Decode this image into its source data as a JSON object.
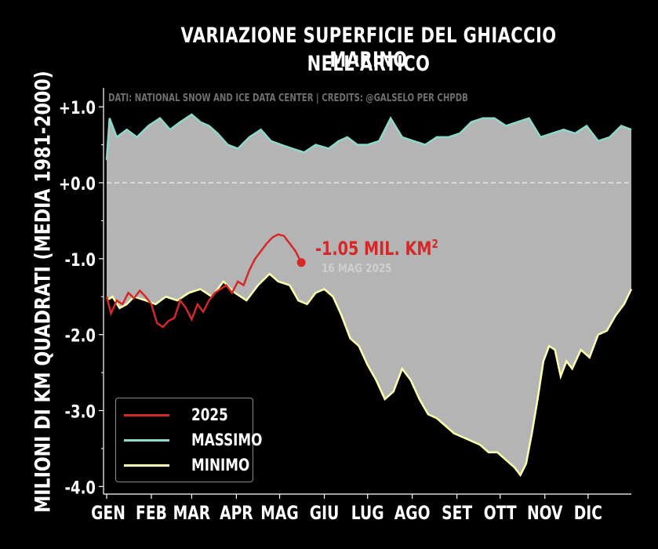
{
  "title_line1": "VARIAZIONE SUPERFICIE DEL GHIACCIO MARINO",
  "title_line2": "NELL'ARTICO",
  "credit": "DATI: NATIONAL SNOW AND ICE DATA CENTER | CREDITS: @GALSELO PER CHPDB",
  "annotation": {
    "value": "-1.05 MIL. KM",
    "superscript": "2",
    "date": "16 MAG 2025"
  },
  "colors": {
    "series_2025": "#d62728",
    "massimo": "#8fd8cc",
    "minimo": "#ffffb0",
    "band": "#b4b4b4",
    "zero_line": "#e6e6e6"
  },
  "chart_data": {
    "type": "line",
    "ylabel": "MILIONI DI KM QUADRATI (MEDIA 1981-2000)",
    "xlabel": "",
    "x_ticks": [
      "GEN",
      "FEB",
      "MAR",
      "APR",
      "MAG",
      "GIU",
      "LUG",
      "AGO",
      "SET",
      "OTT",
      "NOV",
      "DIC"
    ],
    "y_ticks": [
      {
        "value": 1.0,
        "label": "+1.0"
      },
      {
        "value": 0.0,
        "label": "+0.0"
      },
      {
        "value": -1.0,
        "label": "-1.0"
      },
      {
        "value": -2.0,
        "label": "-2.0"
      },
      {
        "value": -3.0,
        "label": "-3.0"
      },
      {
        "value": -4.0,
        "label": "-4.0"
      }
    ],
    "xlim": [
      1,
      365
    ],
    "ylim": [
      -4.1,
      1.25
    ],
    "legend_position": "bottom-left",
    "series": [
      {
        "name": "2025",
        "x": [
          1,
          4,
          8,
          12,
          16,
          20,
          24,
          28,
          32,
          36,
          40,
          44,
          48,
          52,
          56,
          60,
          64,
          68,
          72,
          76,
          80,
          84,
          88,
          92,
          96,
          100,
          104,
          108,
          112,
          116,
          120,
          124,
          128,
          132,
          136
        ],
        "y": [
          -1.5,
          -1.72,
          -1.55,
          -1.6,
          -1.45,
          -1.52,
          -1.42,
          -1.5,
          -1.6,
          -1.85,
          -1.9,
          -1.82,
          -1.78,
          -1.55,
          -1.65,
          -1.8,
          -1.6,
          -1.7,
          -1.55,
          -1.45,
          -1.4,
          -1.35,
          -1.45,
          -1.3,
          -1.35,
          -1.15,
          -1.0,
          -0.9,
          -0.8,
          -0.72,
          -0.68,
          -0.7,
          -0.8,
          -0.9,
          -1.05
        ]
      },
      {
        "name": "MASSIMO",
        "x": [
          1,
          3,
          8,
          15,
          22,
          30,
          38,
          45,
          52,
          60,
          66,
          72,
          78,
          85,
          92,
          100,
          108,
          115,
          122,
          130,
          138,
          146,
          155,
          162,
          168,
          175,
          182,
          190,
          198,
          206,
          214,
          222,
          230,
          238,
          246,
          254,
          262,
          270,
          278,
          286,
          294,
          302,
          310,
          318,
          326,
          334,
          342,
          350,
          358,
          365
        ],
        "y": [
          0.3,
          0.85,
          0.6,
          0.7,
          0.6,
          0.75,
          0.85,
          0.7,
          0.8,
          0.9,
          0.8,
          0.75,
          0.65,
          0.5,
          0.45,
          0.6,
          0.7,
          0.55,
          0.5,
          0.45,
          0.4,
          0.5,
          0.45,
          0.55,
          0.6,
          0.5,
          0.5,
          0.55,
          0.85,
          0.6,
          0.55,
          0.5,
          0.6,
          0.6,
          0.65,
          0.8,
          0.85,
          0.85,
          0.75,
          0.8,
          0.85,
          0.6,
          0.65,
          0.7,
          0.65,
          0.75,
          0.55,
          0.6,
          0.75,
          0.7
        ]
      },
      {
        "name": "MINIMO",
        "x": [
          1,
          5,
          10,
          15,
          20,
          28,
          35,
          42,
          50,
          58,
          66,
          74,
          82,
          90,
          98,
          106,
          114,
          120,
          128,
          134,
          140,
          146,
          152,
          158,
          164,
          170,
          176,
          182,
          188,
          194,
          200,
          206,
          212,
          218,
          224,
          230,
          236,
          242,
          248,
          254,
          260,
          266,
          272,
          278,
          284,
          288,
          292,
          296,
          300,
          304,
          308,
          312,
          316,
          320,
          324,
          330,
          336,
          342,
          348,
          354,
          360,
          365
        ],
        "y": [
          -1.55,
          -1.5,
          -1.65,
          -1.6,
          -1.5,
          -1.55,
          -1.6,
          -1.5,
          -1.55,
          -1.45,
          -1.4,
          -1.5,
          -1.3,
          -1.45,
          -1.55,
          -1.35,
          -1.2,
          -1.3,
          -1.35,
          -1.55,
          -1.6,
          -1.45,
          -1.4,
          -1.5,
          -1.75,
          -2.05,
          -2.15,
          -2.4,
          -2.6,
          -2.85,
          -2.75,
          -2.45,
          -2.6,
          -2.85,
          -3.05,
          -3.1,
          -3.2,
          -3.3,
          -3.35,
          -3.4,
          -3.45,
          -3.55,
          -3.55,
          -3.65,
          -3.75,
          -3.85,
          -3.7,
          -3.3,
          -2.85,
          -2.35,
          -2.15,
          -2.2,
          -2.55,
          -2.35,
          -2.45,
          -2.2,
          -2.3,
          -2.0,
          -1.95,
          -1.75,
          -1.6,
          -1.4
        ]
      }
    ],
    "shaded_band": {
      "between": [
        "MINIMO",
        "MASSIMO"
      ]
    },
    "reference_line": {
      "y": 0.0,
      "style": "dashed"
    }
  }
}
